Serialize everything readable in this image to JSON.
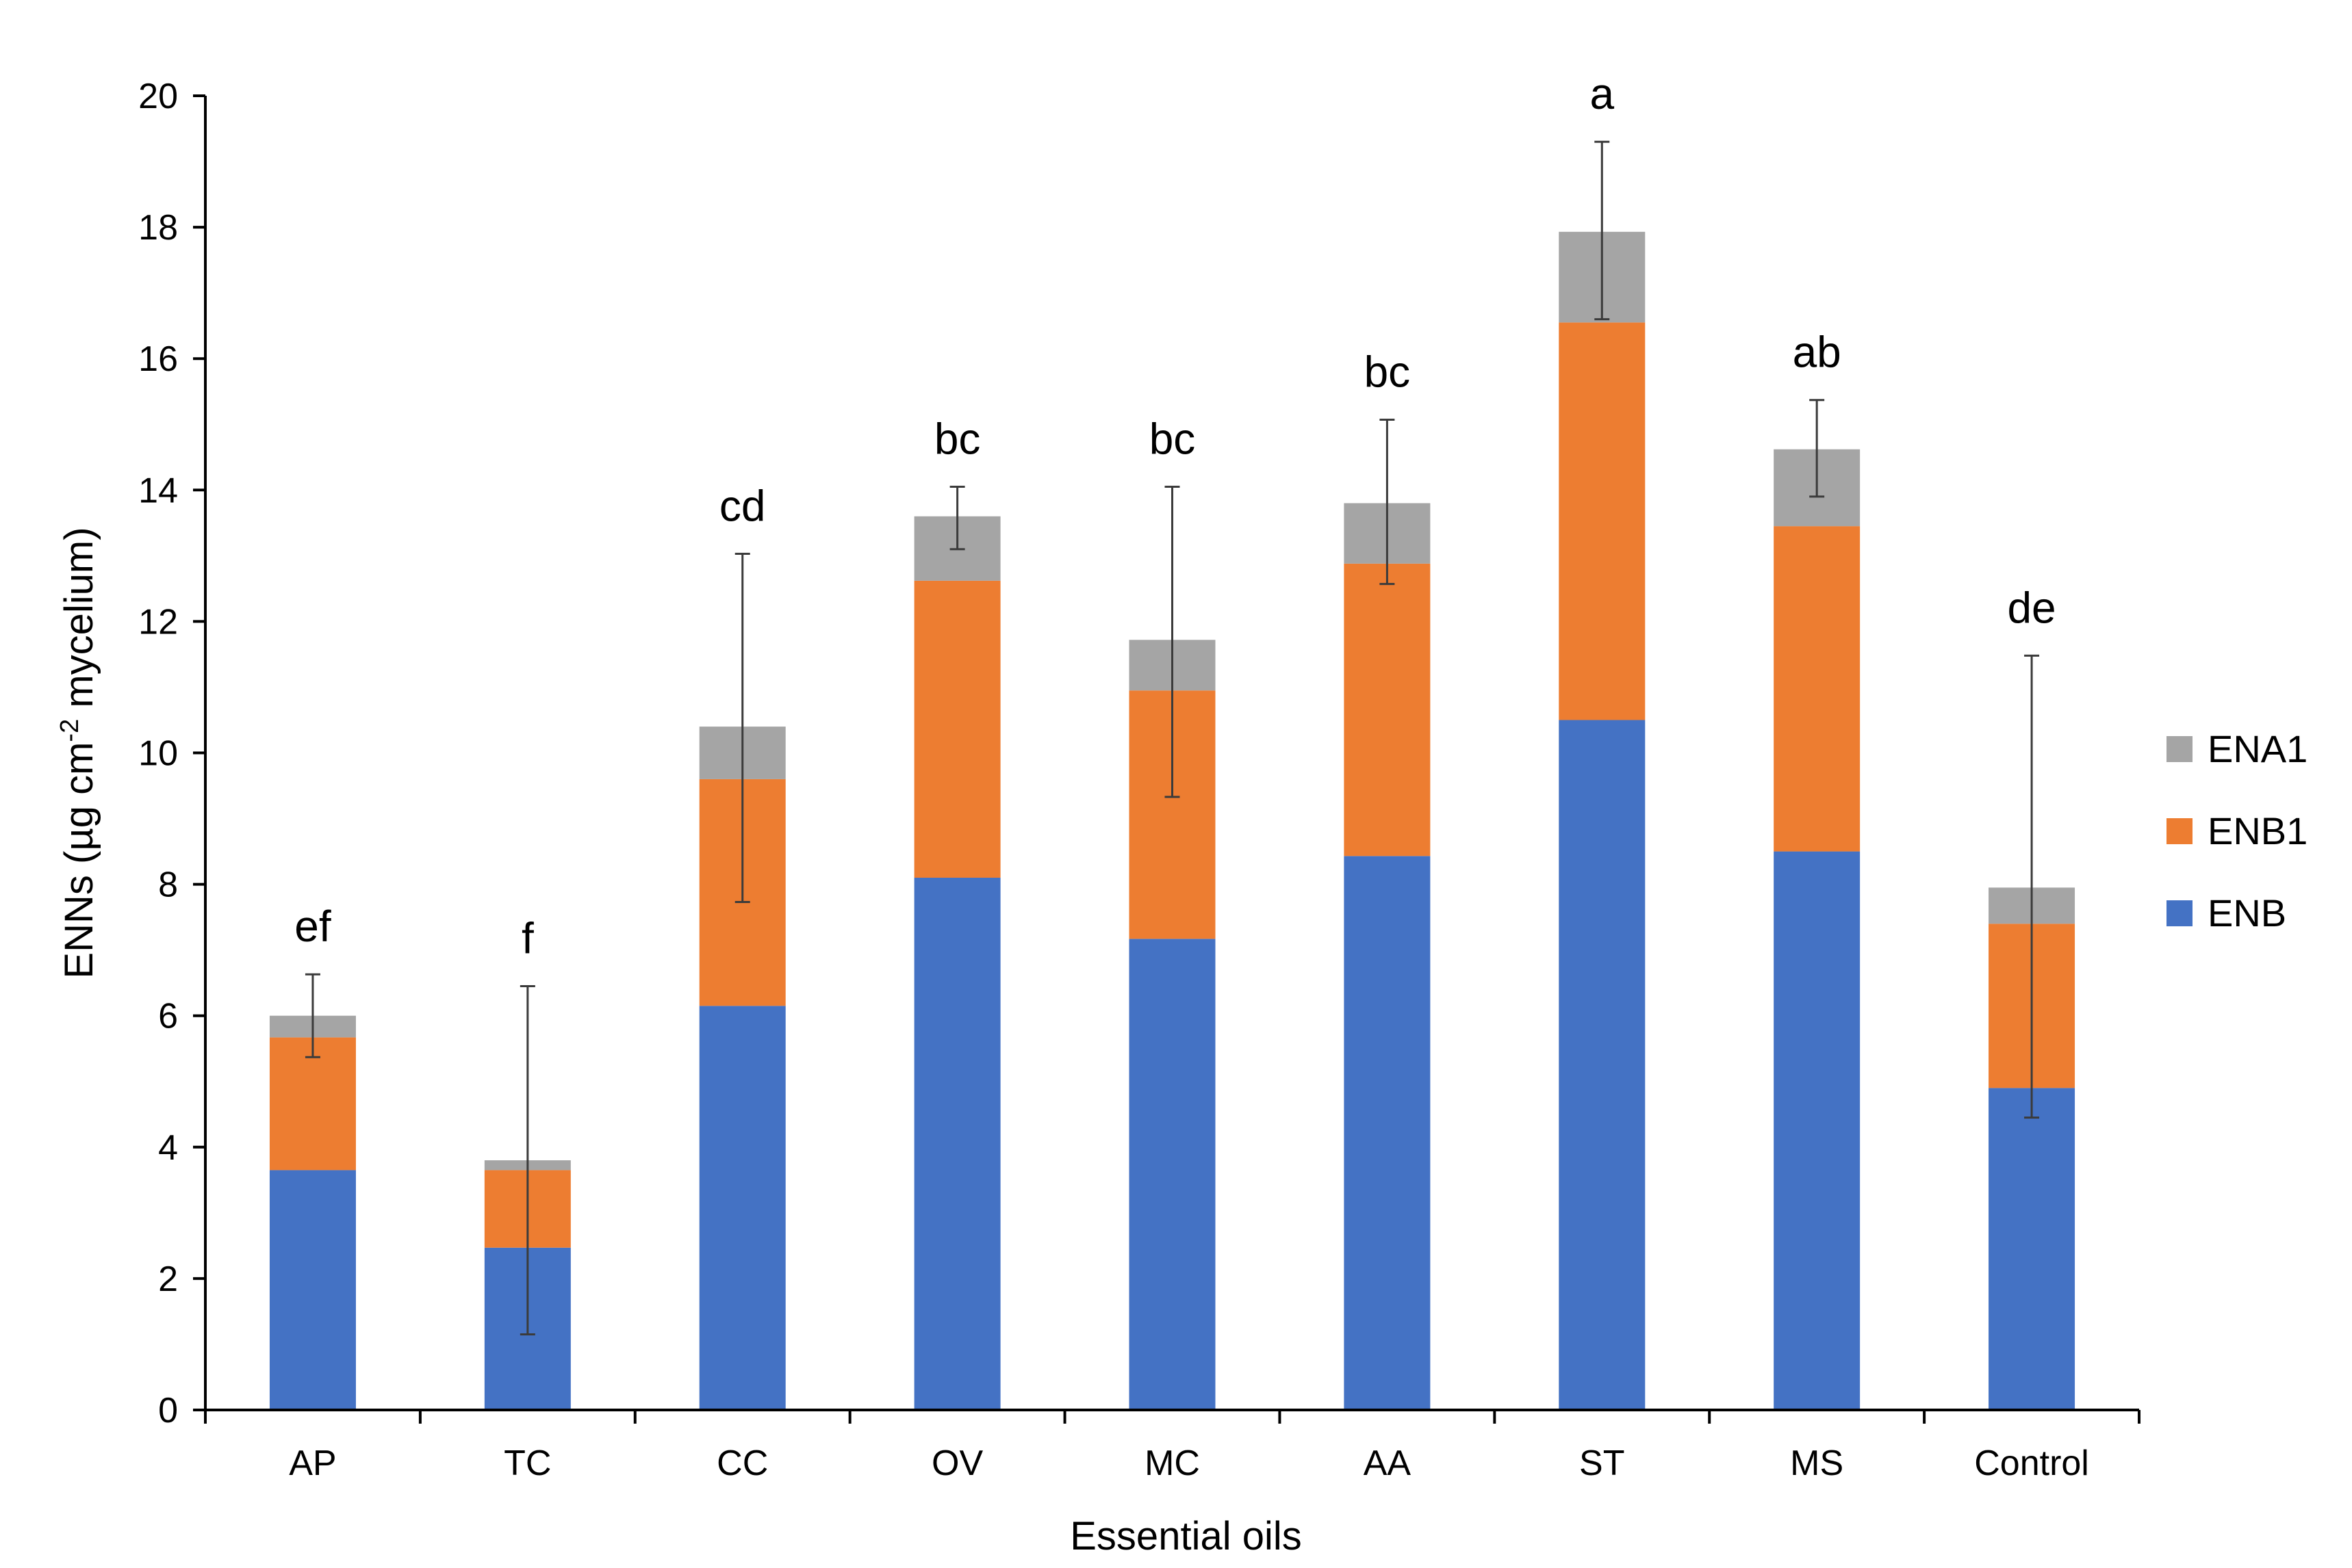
{
  "chart_data": {
    "type": "bar",
    "stacked": true,
    "title": "",
    "xlabel": "Essential oils",
    "ylabel_parts": [
      "ENNs (µg cm",
      "-2",
      " mycelium)"
    ],
    "ylim": [
      0,
      20
    ],
    "yticks": [
      0,
      2,
      4,
      6,
      8,
      10,
      12,
      14,
      16,
      18,
      20
    ],
    "ytick_labels": [
      "0",
      "2",
      "4",
      "6",
      "8",
      "10",
      "12",
      "14",
      "16",
      "18",
      "20"
    ],
    "grid": false,
    "legend_position": "right",
    "categories": [
      "AP",
      "TC",
      "CC",
      "OV",
      "MC",
      "AA",
      "ST",
      "MS",
      "Control"
    ],
    "series": [
      {
        "name": "ENB",
        "color": "#4472c4",
        "values": [
          3.65,
          2.47,
          6.15,
          8.1,
          7.17,
          8.43,
          10.5,
          8.5,
          4.9
        ]
      },
      {
        "name": "ENB1",
        "color": "#ed7d31",
        "values": [
          2.02,
          1.18,
          3.45,
          4.52,
          3.78,
          4.45,
          6.05,
          4.95,
          2.5
        ]
      },
      {
        "name": "ENA1",
        "color": "#a5a5a5",
        "values": [
          0.33,
          0.15,
          0.8,
          0.98,
          0.77,
          0.92,
          1.38,
          1.17,
          0.55
        ]
      }
    ],
    "error_bars": {
      "upper": [
        6.63,
        6.45,
        13.03,
        14.05,
        14.05,
        15.07,
        19.3,
        15.37,
        11.48
      ],
      "lower": [
        5.37,
        1.15,
        7.73,
        13.1,
        9.33,
        12.57,
        16.6,
        13.9,
        4.45
      ]
    },
    "significance_labels": [
      "ef",
      "f",
      "cd",
      "bc",
      "bc",
      "bc",
      "a",
      "ab",
      "de"
    ],
    "legend_order": [
      "ENA1",
      "ENB1",
      "ENB"
    ]
  }
}
